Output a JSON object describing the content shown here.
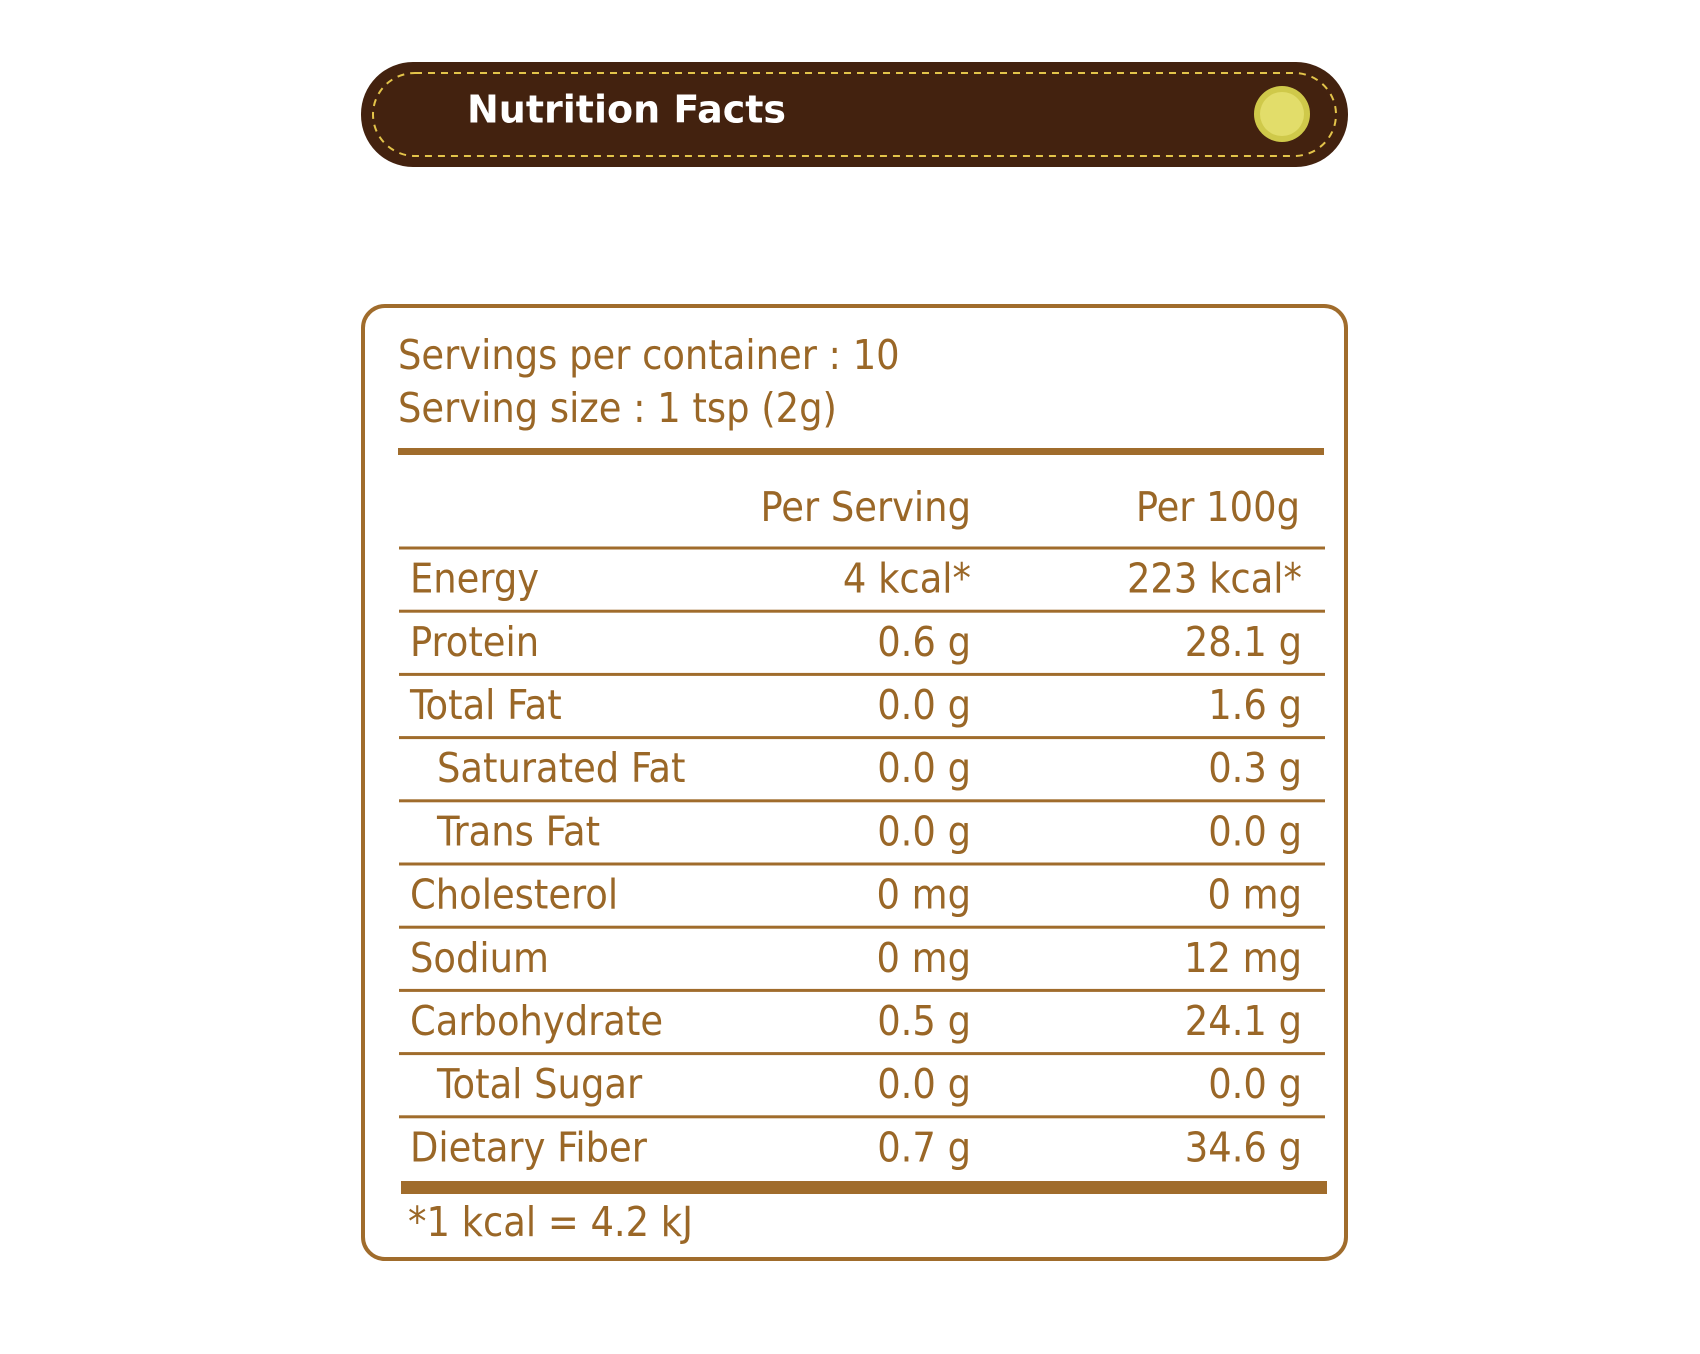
{
  "header": {
    "title": "Nutrition Facts"
  },
  "serving": {
    "servings": "Servings per container : 10",
    "size": "Serving size : 1 tsp (2g)"
  },
  "table": {
    "columns": [
      "Per Serving",
      "Per 100g"
    ],
    "rows": [
      [
        "Energy",
        "4 kcal*",
        "223 kcal*"
      ],
      [
        "Protein",
        "0.6 g",
        "28.1 g"
      ],
      [
        "Total Fat",
        "0.0 g",
        "1.6 g"
      ],
      [
        "Saturated Fat",
        "0.0 g",
        "0.3 g"
      ],
      [
        "Trans Fat",
        "0.0 g",
        "0.0 g"
      ],
      [
        "Cholesterol",
        "0 mg",
        "0 mg"
      ],
      [
        "Sodium",
        "0 mg",
        "12 mg"
      ],
      [
        "Carbohydrate",
        "0.5 g",
        "24.1 g"
      ],
      [
        "Total Sugar",
        "0.0 g",
        "0.0 g"
      ],
      [
        "Dietary Fiber",
        "0.7 g",
        "34.6 g"
      ]
    ]
  },
  "footnote": "*1 kcal = 4.2 kJ"
}
